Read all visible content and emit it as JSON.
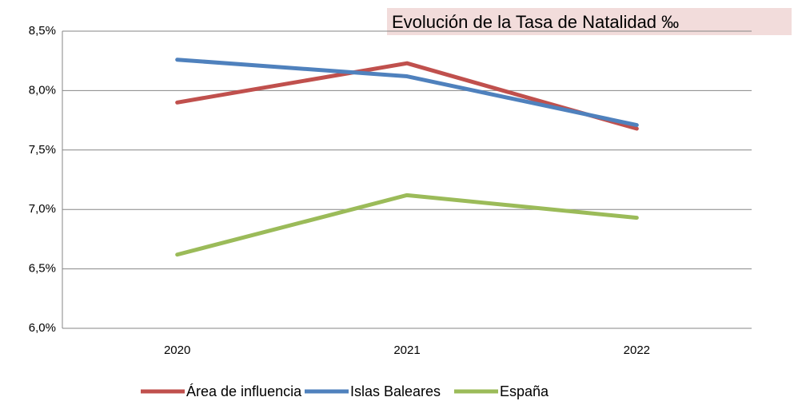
{
  "chart_data": {
    "type": "line",
    "title": "Evolución de la Tasa de Natalidad ‰",
    "categories": [
      "2020",
      "2021",
      "2022"
    ],
    "series": [
      {
        "name": "Área de influencia",
        "color": "#c0504d",
        "values": [
          7.9,
          8.23,
          7.68
        ]
      },
      {
        "name": "Islas Baleares",
        "color": "#4f81bd",
        "values": [
          8.26,
          8.12,
          7.71
        ]
      },
      {
        "name": "España",
        "color": "#9bbb59",
        "values": [
          6.62,
          7.12,
          6.93
        ]
      }
    ],
    "ylim": [
      6.0,
      8.5
    ],
    "yticks": [
      {
        "value": 6.0,
        "label": "6,0%"
      },
      {
        "value": 6.5,
        "label": "6,5%"
      },
      {
        "value": 7.0,
        "label": "7,0%"
      },
      {
        "value": 7.5,
        "label": "7,5%"
      },
      {
        "value": 8.0,
        "label": "8,0%"
      },
      {
        "value": 8.5,
        "label": "8,5%"
      }
    ],
    "grid": true,
    "legend": "bottom"
  }
}
